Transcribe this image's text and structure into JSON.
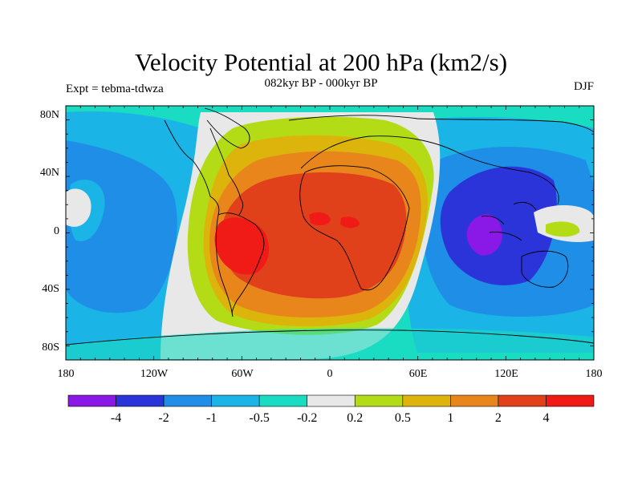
{
  "title": "Velocity Potential at 200 hPa (km2/s)",
  "subtitle": "082kyr BP - 000kyr BP",
  "left_string": "Expt = tebma-tdwza",
  "right_string": "DJF",
  "lat_labels": [
    "80N",
    "40N",
    "0",
    "40S",
    "80S"
  ],
  "lon_labels": [
    "180",
    "120W",
    "60W",
    "0",
    "60E",
    "120E",
    "180"
  ],
  "colorbar": {
    "colors": [
      "#8a18e6",
      "#2a34d8",
      "#1e8ee6",
      "#1ab4e6",
      "#1adcc2",
      "#e8e8e8",
      "#b4dc16",
      "#dcb40c",
      "#e8861c",
      "#e0401a",
      "#f01a16"
    ],
    "labels": [
      "-4",
      "-2",
      "-1",
      "-0.5",
      "-0.2",
      "0.2",
      "0.5",
      "1",
      "2",
      "4"
    ]
  }
}
